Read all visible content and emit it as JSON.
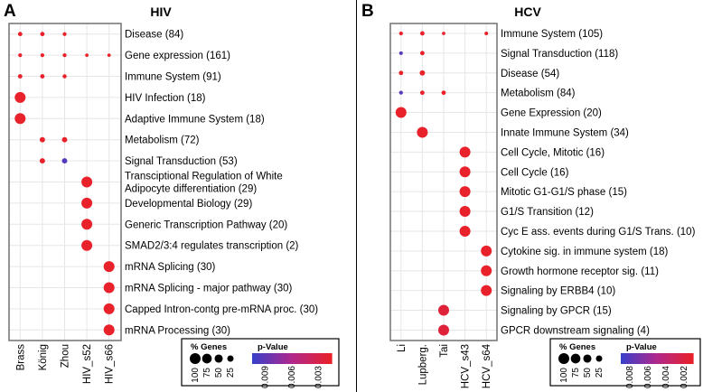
{
  "colors": {
    "low": "#3a3fc9",
    "mid": "#b0288c",
    "high": "#e8212a",
    "grid": "#e6e6e6",
    "frame": "#7a7a7a"
  },
  "chart_data": [
    {
      "type": "scatter",
      "panel_letter": "A",
      "title": "HIV",
      "categories_x": [
        "Brass",
        "König",
        "Zhou",
        "HIV_s52",
        "HIV_s66"
      ],
      "categories_y": [
        "Disease (84)",
        "Gene expression (161)",
        "Immune System (91)",
        "HIV Infection (18)",
        "Adaptive Immune System (18)",
        "Metabolism (72)",
        "Signal Transduction (53)",
        "Transciptional Regulation of White Adipocyte differentiation (29)",
        "Developmental Biology (29)",
        "Generic Transcription Pathway (20)",
        "SMAD2/3:4 regulates transcription (2)",
        "mRNA Splicing (30)",
        "mRNA Splicing - major pathway (30)",
        "Capped Intron-contg pre-mRNA proc. (30)",
        "mRNA Processing (30)"
      ],
      "points": [
        {
          "x": "Brass",
          "y": "Disease (84)",
          "genes": 8,
          "p": 0.001
        },
        {
          "x": "König",
          "y": "Disease (84)",
          "genes": 8,
          "p": 0.001
        },
        {
          "x": "Zhou",
          "y": "Disease (84)",
          "genes": 5,
          "p": 0.001
        },
        {
          "x": "Brass",
          "y": "Gene expression (161)",
          "genes": 5,
          "p": 0.001
        },
        {
          "x": "König",
          "y": "Gene expression (161)",
          "genes": 5,
          "p": 0.001
        },
        {
          "x": "Zhou",
          "y": "Gene expression (161)",
          "genes": 5,
          "p": 0.001
        },
        {
          "x": "HIV_s52",
          "y": "Gene expression (161)",
          "genes": 3,
          "p": 0.001
        },
        {
          "x": "HIV_s66",
          "y": "Gene expression (161)",
          "genes": 3,
          "p": 0.001
        },
        {
          "x": "Brass",
          "y": "Immune System (91)",
          "genes": 8,
          "p": 0.001
        },
        {
          "x": "König",
          "y": "Immune System (91)",
          "genes": 8,
          "p": 0.001
        },
        {
          "x": "Zhou",
          "y": "Immune System (91)",
          "genes": 6,
          "p": 0.001
        },
        {
          "x": "Brass",
          "y": "HIV Infection (18)",
          "genes": 100,
          "p": 0.001
        },
        {
          "x": "Brass",
          "y": "Adaptive Immune System (18)",
          "genes": 100,
          "p": 0.001
        },
        {
          "x": "König",
          "y": "Metabolism (72)",
          "genes": 15,
          "p": 0.001
        },
        {
          "x": "Zhou",
          "y": "Metabolism (72)",
          "genes": 15,
          "p": 0.001
        },
        {
          "x": "König",
          "y": "Signal Transduction (53)",
          "genes": 15,
          "p": 0.001
        },
        {
          "x": "Zhou",
          "y": "Signal Transduction (53)",
          "genes": 15,
          "p": 0.009
        },
        {
          "x": "HIV_s52",
          "y": "Transciptional Regulation of White Adipocyte differentiation (29)",
          "genes": 100,
          "p": 0.001
        },
        {
          "x": "HIV_s52",
          "y": "Developmental Biology (29)",
          "genes": 100,
          "p": 0.001
        },
        {
          "x": "HIV_s52",
          "y": "Generic Transcription Pathway (20)",
          "genes": 100,
          "p": 0.001
        },
        {
          "x": "HIV_s52",
          "y": "SMAD2/3:4 regulates transcription (2)",
          "genes": 100,
          "p": 0.001
        },
        {
          "x": "HIV_s66",
          "y": "mRNA Splicing (30)",
          "genes": 100,
          "p": 0.001
        },
        {
          "x": "HIV_s66",
          "y": "mRNA Splicing - major pathway (30)",
          "genes": 100,
          "p": 0.001
        },
        {
          "x": "HIV_s66",
          "y": "Capped Intron-contg pre-mRNA proc. (30)",
          "genes": 100,
          "p": 0.001
        },
        {
          "x": "HIV_s66",
          "y": "mRNA Processing (30)",
          "genes": 100,
          "p": 0.001
        }
      ],
      "size_legend": {
        "title": "% Genes",
        "values": [
          100,
          75,
          50,
          25
        ]
      },
      "color_legend": {
        "title": "p-Value",
        "ticks": [
          "0.009",
          "0.006",
          "0.003"
        ],
        "range": [
          0.01,
          0.001
        ]
      }
    },
    {
      "type": "scatter",
      "panel_letter": "B",
      "title": "HCV",
      "categories_x": [
        "Li",
        "Lupberg.",
        "Tai",
        "HCV_s43",
        "HCV_s64"
      ],
      "categories_y": [
        "Immune System (105)",
        "Signal Transduction (118)",
        "Disease (54)",
        "Metabolism (84)",
        "Gene Expression (20)",
        "Innate Immune System (34)",
        "Cell Cycle, Mitotic (16)",
        "Cell Cycle (16)",
        "Mitotic G1-G1/S phase (15)",
        "G1/S Transition (12)",
        "Cyc E ass. events during G1/S Trans. (10)",
        "Cytokine sig. in immune system (18)",
        "Growth hormone receptor sig. (11)",
        "Signaling by ERBB4 (10)",
        "Signaling by GPCR (15)",
        "GPCR downstream signaling (4)"
      ],
      "points": [
        {
          "x": "Li",
          "y": "Immune System (105)",
          "genes": 5,
          "p": 0.0005
        },
        {
          "x": "Lupberg.",
          "y": "Immune System (105)",
          "genes": 8,
          "p": 0.0005
        },
        {
          "x": "Tai",
          "y": "Immune System (105)",
          "genes": 3,
          "p": 0.0005
        },
        {
          "x": "HCV_s64",
          "y": "Immune System (105)",
          "genes": 4,
          "p": 0.0005
        },
        {
          "x": "Li",
          "y": "Signal Transduction (118)",
          "genes": 4,
          "p": 0.008
        },
        {
          "x": "Lupberg.",
          "y": "Signal Transduction (118)",
          "genes": 8,
          "p": 0.0005
        },
        {
          "x": "Li",
          "y": "Disease (54)",
          "genes": 8,
          "p": 0.0005
        },
        {
          "x": "Lupberg.",
          "y": "Disease (54)",
          "genes": 15,
          "p": 0.0005
        },
        {
          "x": "Li",
          "y": "Metabolism (84)",
          "genes": 5,
          "p": 0.008
        },
        {
          "x": "Lupberg.",
          "y": "Metabolism (84)",
          "genes": 8,
          "p": 0.0005
        },
        {
          "x": "Tai",
          "y": "Metabolism (84)",
          "genes": 8,
          "p": 0.0005
        },
        {
          "x": "Li",
          "y": "Gene Expression (20)",
          "genes": 100,
          "p": 0.0005
        },
        {
          "x": "Lupberg.",
          "y": "Innate Immune System (34)",
          "genes": 100,
          "p": 0.0005
        },
        {
          "x": "HCV_s43",
          "y": "Cell Cycle, Mitotic (16)",
          "genes": 100,
          "p": 0.0005
        },
        {
          "x": "HCV_s43",
          "y": "Cell Cycle (16)",
          "genes": 100,
          "p": 0.0005
        },
        {
          "x": "HCV_s43",
          "y": "Mitotic G1-G1/S phase (15)",
          "genes": 100,
          "p": 0.0005
        },
        {
          "x": "HCV_s43",
          "y": "G1/S Transition (12)",
          "genes": 100,
          "p": 0.0005
        },
        {
          "x": "HCV_s43",
          "y": "Cyc E ass. events during G1/S Trans. (10)",
          "genes": 100,
          "p": 0.0005
        },
        {
          "x": "HCV_s64",
          "y": "Cytokine sig. in immune system (18)",
          "genes": 100,
          "p": 0.0005
        },
        {
          "x": "HCV_s64",
          "y": "Growth hormone receptor sig. (11)",
          "genes": 100,
          "p": 0.0005
        },
        {
          "x": "HCV_s64",
          "y": "Signaling by ERBB4 (10)",
          "genes": 100,
          "p": 0.0005
        },
        {
          "x": "Tai",
          "y": "Signaling by GPCR (15)",
          "genes": 100,
          "p": 0.0012
        },
        {
          "x": "Tai",
          "y": "GPCR downstream signaling (4)",
          "genes": 100,
          "p": 0.0012
        }
      ],
      "size_legend": {
        "title": "% Genes",
        "values": [
          100,
          75,
          50,
          25
        ]
      },
      "color_legend": {
        "title": "p-Value",
        "ticks": [
          "0.008",
          "0.006",
          "0.004",
          "0.002"
        ],
        "range": [
          0.009,
          0.0005
        ]
      }
    }
  ]
}
